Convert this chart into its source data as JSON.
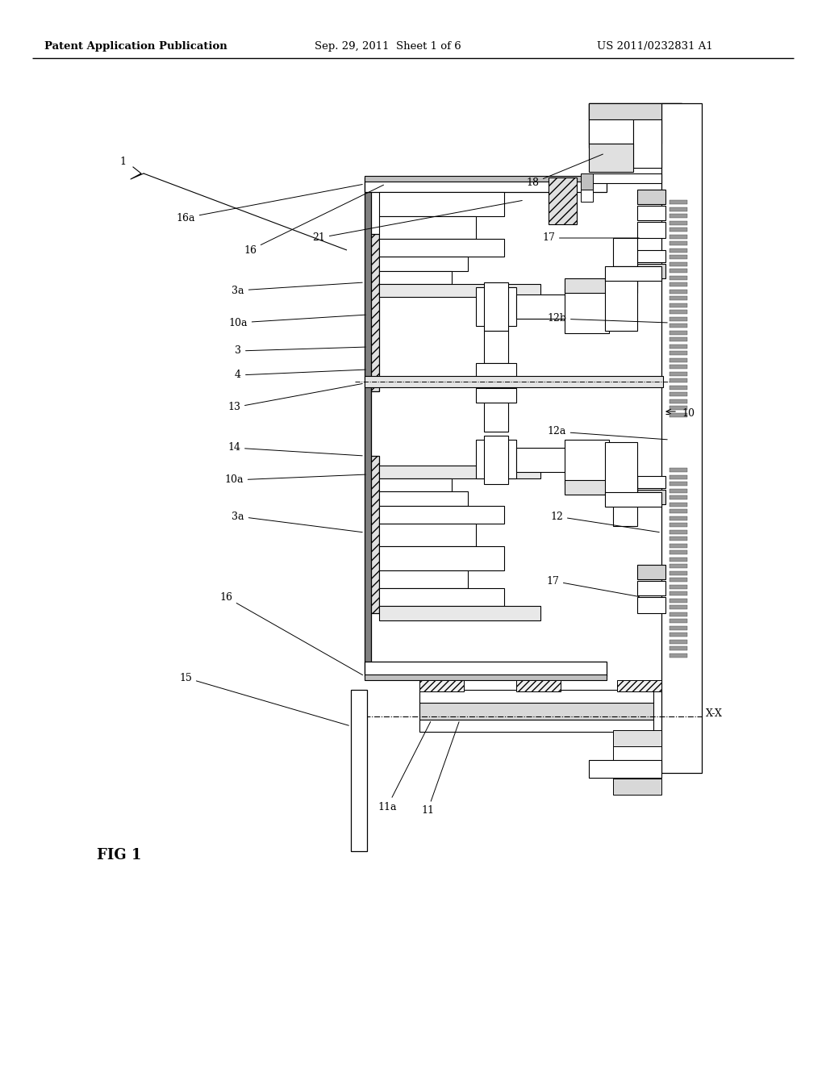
{
  "bg_color": "#ffffff",
  "header_text_left": "Patent Application Publication",
  "header_text_mid": "Sep. 29, 2011  Sheet 1 of 6",
  "header_text_right": "US 2011/0232831 A1",
  "fig_label": "FIG 1",
  "header_fontsize": 9.5,
  "label_fontsize": 9.0,
  "fig_label_fontsize": 13
}
